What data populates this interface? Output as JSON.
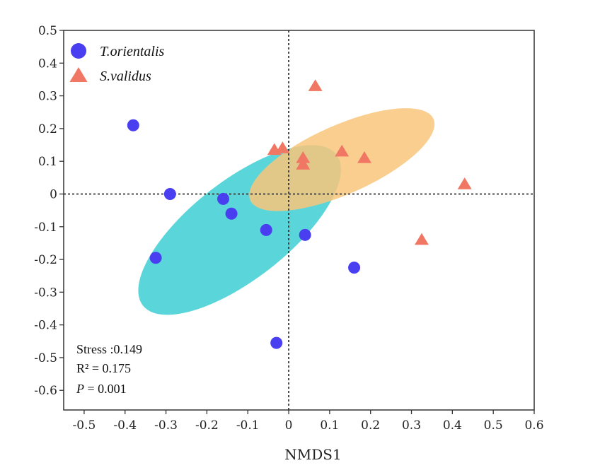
{
  "chart_data": {
    "type": "scatter",
    "xlabel": "NMDS1",
    "ylabel": "",
    "xlim": [
      -0.55,
      0.6
    ],
    "ylim": [
      -0.66,
      0.5
    ],
    "xticks": [
      "-0.5",
      "-0.4",
      "-0.3",
      "-0.2",
      "-0.1",
      "0",
      "0.1",
      "0.2",
      "0.3",
      "0.4",
      "0.5",
      "0.6"
    ],
    "xtick_values": [
      -0.5,
      -0.4,
      -0.3,
      -0.2,
      -0.1,
      0,
      0.1,
      0.2,
      0.3,
      0.4,
      0.5,
      0.6
    ],
    "yticks": [
      "0.5",
      "0.4",
      "0.3",
      "0.2",
      "0.1",
      "0",
      "-0.1",
      "-0.2",
      "-0.3",
      "-0.4",
      "-0.5",
      "-0.6"
    ],
    "ytick_values": [
      0.5,
      0.4,
      0.3,
      0.2,
      0.1,
      0,
      -0.1,
      -0.2,
      -0.3,
      -0.4,
      -0.5,
      -0.6
    ],
    "reference_lines": {
      "x": 0,
      "y": 0
    },
    "series": [
      {
        "name": "T.orientalis",
        "marker": "circle",
        "color": "#4a3ff0",
        "ellipse_color": "#3dcfd3",
        "points": [
          {
            "x": -0.38,
            "y": 0.21
          },
          {
            "x": -0.29,
            "y": 0.0
          },
          {
            "x": -0.16,
            "y": -0.015
          },
          {
            "x": -0.14,
            "y": -0.06
          },
          {
            "x": -0.055,
            "y": -0.11
          },
          {
            "x": 0.04,
            "y": -0.125
          },
          {
            "x": -0.325,
            "y": -0.195
          },
          {
            "x": 0.16,
            "y": -0.225
          },
          {
            "x": -0.03,
            "y": -0.455
          }
        ],
        "ellipse": {
          "cx": -0.12,
          "cy": -0.11,
          "rx": 0.3,
          "ry": 0.15,
          "angle_deg": -38
        }
      },
      {
        "name": "S.validus",
        "marker": "triangle",
        "color": "#f07763",
        "ellipse_color": "#f9c67a",
        "points": [
          {
            "x": 0.065,
            "y": 0.33
          },
          {
            "x": -0.035,
            "y": 0.135
          },
          {
            "x": -0.015,
            "y": 0.14
          },
          {
            "x": 0.035,
            "y": 0.11
          },
          {
            "x": 0.035,
            "y": 0.09
          },
          {
            "x": 0.13,
            "y": 0.13
          },
          {
            "x": 0.185,
            "y": 0.11
          },
          {
            "x": 0.43,
            "y": 0.03
          },
          {
            "x": 0.325,
            "y": -0.14
          }
        ],
        "ellipse": {
          "cx": 0.13,
          "cy": 0.105,
          "rx": 0.245,
          "ry": 0.105,
          "angle_deg": -24
        }
      }
    ],
    "annotations": {
      "stress": "Stress :0.149",
      "r2": "R² = 0.175",
      "p_label": "P",
      "p_value": " = 0.001"
    },
    "legend_position": "top-left"
  }
}
